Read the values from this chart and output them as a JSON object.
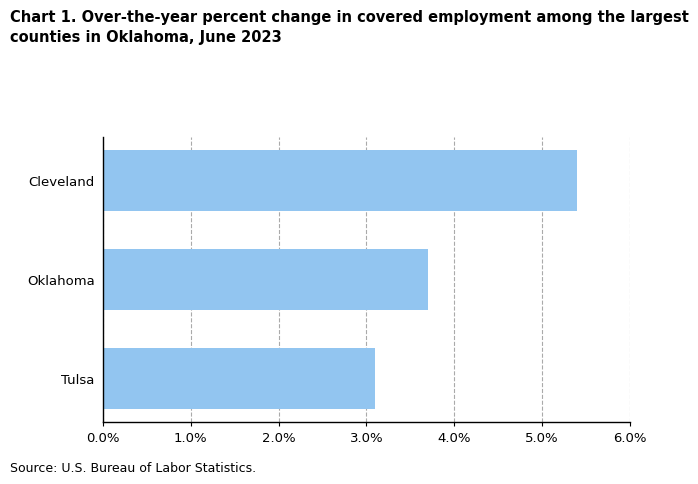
{
  "title_line1": "Chart 1. Over-the-year percent change in covered employment among the largest",
  "title_line2": "counties in Oklahoma, June 2023",
  "categories": [
    "Tulsa",
    "Oklahoma",
    "Cleveland"
  ],
  "values": [
    3.1,
    3.7,
    5.4
  ],
  "bar_color": "#92C5F0",
  "xlim": [
    0,
    0.06
  ],
  "xticks": [
    0.0,
    0.01,
    0.02,
    0.03,
    0.04,
    0.05,
    0.06
  ],
  "xtick_labels": [
    "0.0%",
    "1.0%",
    "2.0%",
    "3.0%",
    "4.0%",
    "5.0%",
    "6.0%"
  ],
  "source": "Source: U.S. Bureau of Labor Statistics.",
  "title_fontsize": 10.5,
  "tick_fontsize": 9.5,
  "source_fontsize": 9,
  "grid_color": "#aaaaaa",
  "bar_height": 0.62
}
